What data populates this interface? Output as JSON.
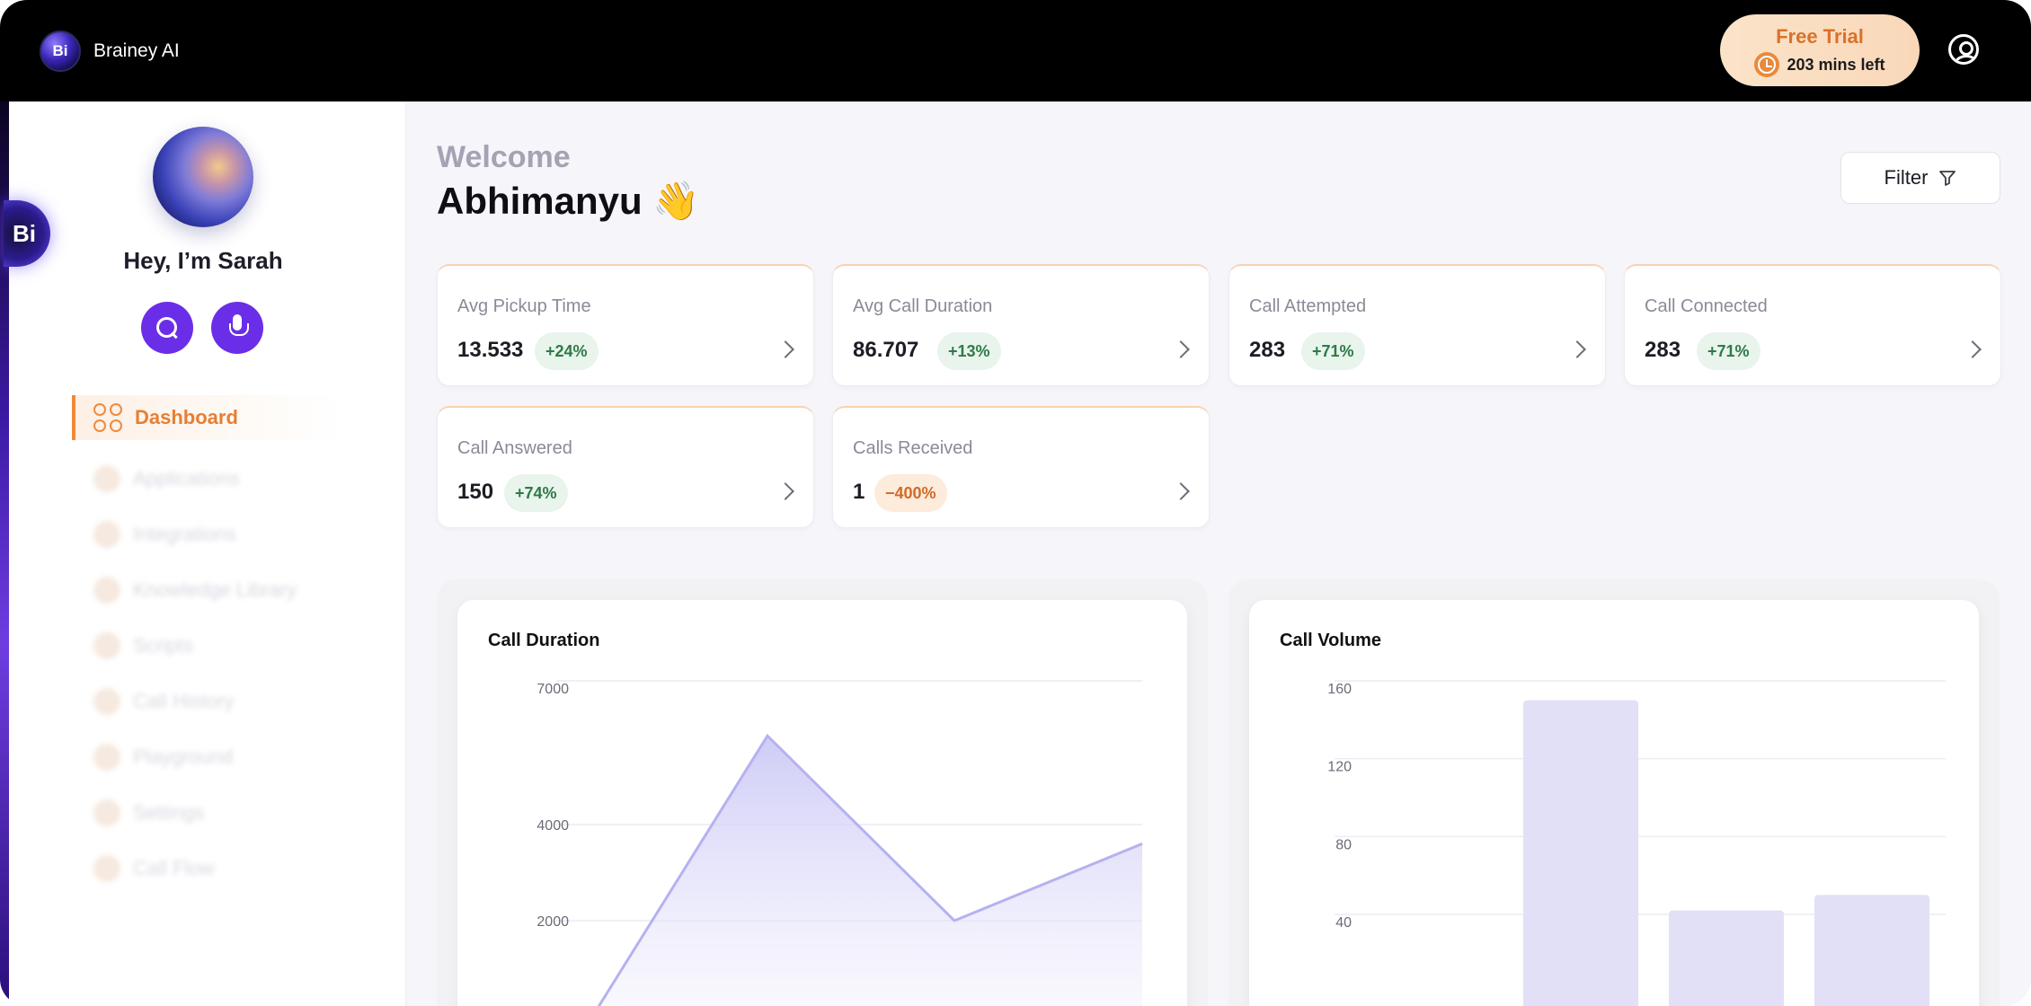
{
  "app": {
    "name": "Brainey AI",
    "logo_text": "Bi"
  },
  "trial": {
    "title": "Free Trial",
    "remaining": "203 mins left"
  },
  "sidebar": {
    "edge_badge": "Bi",
    "greeting": "Hey, I’m Sarah",
    "items": [
      {
        "label": "Dashboard",
        "active": true
      },
      {
        "label": "Applications"
      },
      {
        "label": "Integrations"
      },
      {
        "label": "Knowledge Library"
      },
      {
        "label": "Scripts"
      },
      {
        "label": "Call History"
      },
      {
        "label": "Playground"
      },
      {
        "label": "Settings"
      },
      {
        "label": "Call Flow"
      }
    ]
  },
  "header": {
    "welcome": "Welcome",
    "user": "Abhimanyu 👋",
    "filter_label": "Filter"
  },
  "stats": [
    {
      "label": "Avg Pickup Time",
      "value": "13.533",
      "change": "+24%",
      "trend": "up"
    },
    {
      "label": "Avg Call Duration",
      "value": "86.707",
      "change": "+13%",
      "trend": "up"
    },
    {
      "label": "Call Attempted",
      "value": "283",
      "change": "+71%",
      "trend": "up"
    },
    {
      "label": "Call Connected",
      "value": "283",
      "change": "+71%",
      "trend": "up"
    },
    {
      "label": "Call Answered",
      "value": "150",
      "change": "+74%",
      "trend": "up"
    },
    {
      "label": "Calls Received",
      "value": "1",
      "change": "−400%",
      "trend": "down"
    }
  ],
  "colors": {
    "accent": "#f08a3b",
    "primary": "#6a2ee8",
    "line": "#b4b2f0",
    "bar": "#e2e0f7"
  },
  "chart_data": [
    {
      "type": "area",
      "title": "Call Duration",
      "yticks": [
        "7000",
        "4000",
        "2000"
      ],
      "points": [
        500,
        5950,
        2000,
        3600
      ],
      "ylim": [
        0,
        7000
      ]
    },
    {
      "type": "bar",
      "title": "Call Volume",
      "yticks": [
        "160",
        "120",
        "80",
        "40"
      ],
      "values": [
        0,
        150,
        42,
        50
      ],
      "ylim": [
        0,
        160
      ]
    }
  ]
}
